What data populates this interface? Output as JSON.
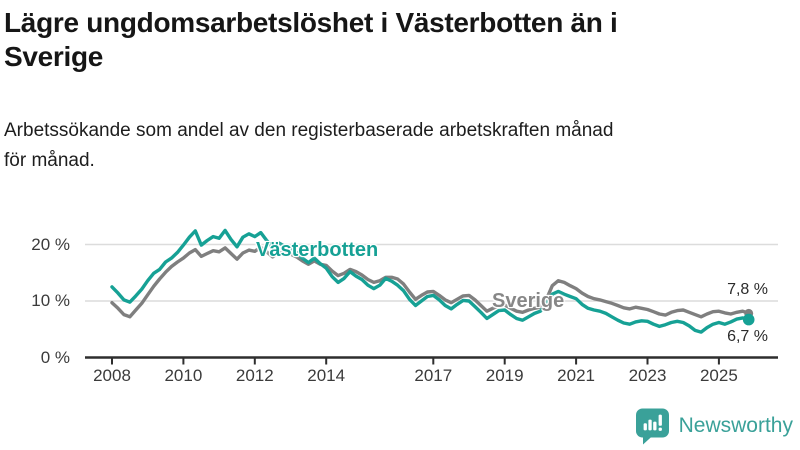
{
  "header": {
    "title_lines": [
      "Lägre ungdomsarbetslöshet i Västerbotten än i",
      "Sverige"
    ],
    "subtitle_lines": [
      "Arbetssökande som andel av den registerbaserade arbetskraften månad",
      "för månad."
    ]
  },
  "chart_data": {
    "type": "line",
    "title": "Lägre ungdomsarbetslöshet i Västerbotten än i Sverige",
    "subtitle": "Arbetssökande som andel av den registerbaserade arbetskraften månad för månad.",
    "unit": "%",
    "xlabel": "",
    "ylabel": "",
    "xlim": [
      2007.25,
      2026.65
    ],
    "ylim": [
      0,
      24
    ],
    "grid": "horizontal",
    "legend_position": "inline-labels",
    "x_start": 2008,
    "x_step_years": 0.16667,
    "x_ticks": [
      {
        "value": 2008,
        "label": "2008"
      },
      {
        "value": 2010,
        "label": "2010"
      },
      {
        "value": 2012,
        "label": "2012"
      },
      {
        "value": 2014,
        "label": "2014"
      },
      {
        "value": 2017,
        "label": "2017"
      },
      {
        "value": 2019,
        "label": "2019"
      },
      {
        "value": 2021,
        "label": "2021"
      },
      {
        "value": 2023,
        "label": "2023"
      },
      {
        "value": 2025,
        "label": "2025"
      }
    ],
    "y_ticks": [
      {
        "value": 0,
        "label": "0 %"
      },
      {
        "value": 10,
        "label": "10 %"
      },
      {
        "value": 20,
        "label": "20 %"
      }
    ],
    "grid_values": [
      10,
      20
    ],
    "series": [
      {
        "name": "Västerbotten",
        "color": "#16A195",
        "end_label": "6,7 %",
        "end_value": 6.7,
        "end_dot": true,
        "values": [
          12.5,
          11.4,
          10.2,
          9.8,
          10.9,
          12.1,
          13.6,
          14.9,
          15.6,
          16.9,
          17.6,
          18.6,
          19.9,
          21.3,
          22.4,
          19.9,
          20.7,
          21.4,
          21.1,
          22.5,
          20.9,
          19.6,
          21.3,
          21.9,
          21.4,
          22.1,
          20.7,
          19.4,
          20.3,
          19.7,
          19.5,
          18.6,
          17.6,
          16.8,
          17.6,
          16.6,
          15.8,
          14.3,
          13.3,
          14.0,
          15.2,
          14.4,
          13.8,
          12.8,
          12.2,
          12.8,
          14.0,
          13.5,
          12.8,
          11.8,
          10.3,
          9.2,
          10.0,
          10.8,
          11.0,
          10.2,
          9.2,
          8.6,
          9.4,
          10.1,
          10.0,
          9.0,
          8.0,
          6.9,
          7.6,
          8.3,
          8.4,
          7.6,
          6.9,
          6.6,
          7.2,
          7.8,
          8.2,
          9.5,
          11.2,
          11.7,
          11.2,
          10.8,
          10.4,
          9.4,
          8.7,
          8.4,
          8.2,
          7.8,
          7.2,
          6.6,
          6.1,
          5.9,
          6.3,
          6.5,
          6.4,
          5.9,
          5.5,
          5.8,
          6.2,
          6.4,
          6.2,
          5.6,
          4.8,
          4.5,
          5.3,
          5.9,
          6.2,
          5.9,
          6.3,
          6.8,
          7.0,
          6.7
        ]
      },
      {
        "name": "Sverige",
        "color": "#7F7F7F",
        "end_label": "7,8 %",
        "end_value": 7.8,
        "end_dot": true,
        "values": [
          9.7,
          8.7,
          7.6,
          7.2,
          8.4,
          9.6,
          11.1,
          12.6,
          13.9,
          15.1,
          16.1,
          16.9,
          17.6,
          18.5,
          19.1,
          17.9,
          18.4,
          18.9,
          18.7,
          19.4,
          18.4,
          17.4,
          18.5,
          19.0,
          18.8,
          19.5,
          18.7,
          17.8,
          18.6,
          18.3,
          18.3,
          17.8,
          17.1,
          16.5,
          17.1,
          16.5,
          16.3,
          15.3,
          14.5,
          14.9,
          15.6,
          15.2,
          14.6,
          13.8,
          13.3,
          13.6,
          14.2,
          14.2,
          13.9,
          13.0,
          11.6,
          10.3,
          11.0,
          11.6,
          11.7,
          11.0,
          10.2,
          9.7,
          10.3,
          10.9,
          11.0,
          10.2,
          9.2,
          8.2,
          8.7,
          9.2,
          9.3,
          8.7,
          8.2,
          8.0,
          8.4,
          8.7,
          8.9,
          10.3,
          12.7,
          13.6,
          13.3,
          12.7,
          12.2,
          11.4,
          10.8,
          10.4,
          10.2,
          9.9,
          9.6,
          9.2,
          8.8,
          8.6,
          8.9,
          8.7,
          8.5,
          8.1,
          7.7,
          7.5,
          8.0,
          8.3,
          8.4,
          8.0,
          7.6,
          7.2,
          7.7,
          8.1,
          8.2,
          7.9,
          7.7,
          8.0,
          8.2,
          7.8
        ]
      }
    ],
    "colors": {
      "grid": "#dcdcdc",
      "axis": "#2e2e2e",
      "tick_text": "#3b3b3b"
    }
  },
  "footer": {
    "brand": "Newsworthy",
    "brand_color": "#3AA199"
  }
}
